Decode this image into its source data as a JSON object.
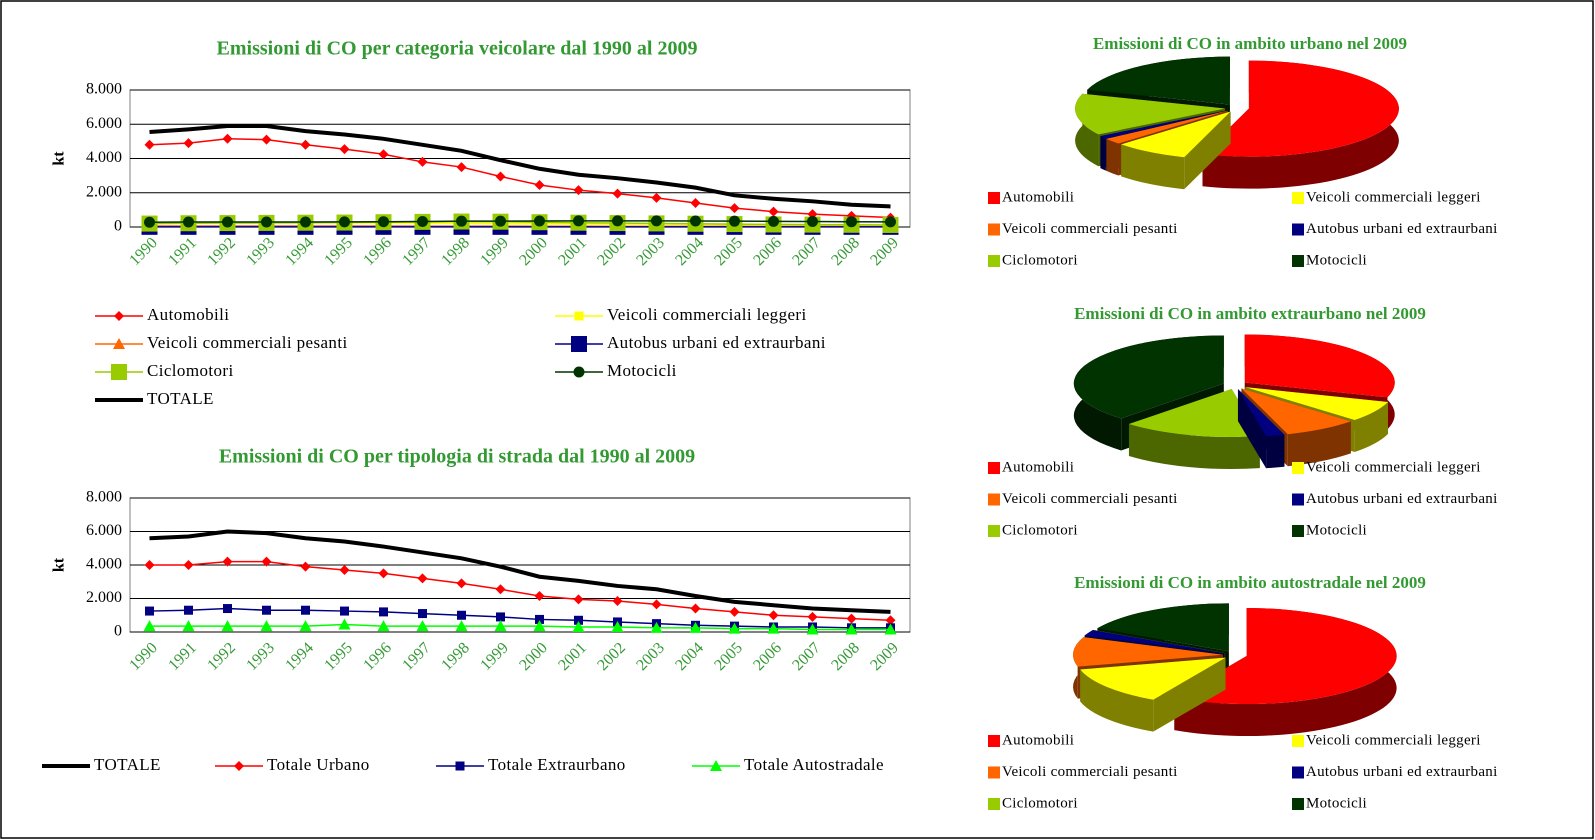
{
  "chart_data": [
    {
      "type": "line",
      "title": "Emissioni di CO per categoria veicolare dal 1990 al 2009",
      "y_label": "kt",
      "categories": [
        "1990",
        "1991",
        "1992",
        "1993",
        "1994",
        "1995",
        "1996",
        "1997",
        "1998",
        "1999",
        "2000",
        "2001",
        "2002",
        "2003",
        "2004",
        "2005",
        "2006",
        "2007",
        "2008",
        "2009"
      ],
      "ylim": [
        0,
        8000
      ],
      "yticks": [
        0,
        {
          "value": 2000,
          "label": "2.000"
        },
        {
          "value": 4000,
          "label": "4.000"
        },
        {
          "value": 6000,
          "label": "6.000"
        },
        {
          "value": 8000,
          "label": "8.000"
        }
      ],
      "grid": true,
      "series": [
        {
          "name": "Automobili",
          "color": "#ff0000",
          "marker": "diamond",
          "values": [
            4800,
            4900,
            5150,
            5100,
            4800,
            4550,
            4250,
            3800,
            3500,
            2950,
            2450,
            2150,
            1950,
            1700,
            1400,
            1100,
            900,
            750,
            650,
            550
          ]
        },
        {
          "name": "Veicoli commerciali leggeri",
          "color": "#ffff00",
          "marker": "square",
          "values": [
            250,
            250,
            260,
            260,
            260,
            250,
            240,
            230,
            220,
            200,
            190,
            180,
            170,
            160,
            150,
            140,
            130,
            120,
            110,
            100
          ]
        },
        {
          "name": "Veicoli commerciali pesanti",
          "color": "#ff6600",
          "marker": "triangle",
          "values": [
            60,
            60,
            60,
            60,
            55,
            55,
            55,
            50,
            50,
            50,
            45,
            45,
            40,
            40,
            35,
            35,
            30,
            30,
            25,
            25
          ]
        },
        {
          "name": "Autobus urbani ed extraurbani",
          "color": "#000080",
          "marker": "bigsquare",
          "values": [
            10,
            10,
            10,
            10,
            10,
            10,
            10,
            10,
            10,
            10,
            10,
            10,
            10,
            10,
            10,
            10,
            10,
            10,
            10,
            10
          ]
        },
        {
          "name": "Ciclomotori",
          "color": "#99cc00",
          "marker": "bigsquare",
          "values": [
            200,
            220,
            230,
            240,
            250,
            260,
            280,
            300,
            320,
            310,
            280,
            250,
            230,
            210,
            190,
            170,
            150,
            140,
            130,
            120
          ]
        },
        {
          "name": "Motocicli",
          "color": "#003300",
          "marker": "circle",
          "values": [
            280,
            290,
            290,
            290,
            290,
            300,
            310,
            320,
            340,
            340,
            350,
            360,
            360,
            360,
            350,
            340,
            330,
            320,
            310,
            300
          ]
        },
        {
          "name": "TOTALE",
          "color": "#000000",
          "marker": "none",
          "values": [
            5550,
            5700,
            5900,
            5900,
            5600,
            5400,
            5150,
            4800,
            4450,
            3900,
            3400,
            3050,
            2850,
            2600,
            2300,
            1850,
            1650,
            1500,
            1300,
            1200
          ]
        }
      ]
    },
    {
      "type": "line",
      "title": "Emissioni di CO per tipologia di strada dal 1990 al 2009",
      "y_label": "kt",
      "categories": [
        "1990",
        "1991",
        "1992",
        "1993",
        "1994",
        "1995",
        "1996",
        "1997",
        "1998",
        "1999",
        "2000",
        "2001",
        "2002",
        "2003",
        "2004",
        "2005",
        "2006",
        "2007",
        "2008",
        "2009"
      ],
      "ylim": [
        0,
        8000
      ],
      "yticks": [
        0,
        {
          "value": 2000,
          "label": "2.000"
        },
        {
          "value": 4000,
          "label": "4.000"
        },
        {
          "value": 6000,
          "label": "6.000"
        },
        {
          "value": 8000,
          "label": "8.000"
        }
      ],
      "grid": true,
      "series": [
        {
          "name": "TOTALE",
          "color": "#000000",
          "marker": "none",
          "values": [
            5600,
            5700,
            6000,
            5900,
            5600,
            5400,
            5100,
            4750,
            4400,
            3900,
            3300,
            3050,
            2750,
            2550,
            2150,
            1800,
            1600,
            1400,
            1300,
            1200
          ]
        },
        {
          "name": "Totale Urbano",
          "color": "#ff0000",
          "marker": "diamond",
          "values": [
            4000,
            4000,
            4200,
            4200,
            3900,
            3700,
            3500,
            3200,
            2900,
            2550,
            2150,
            1950,
            1850,
            1650,
            1400,
            1200,
            1000,
            900,
            800,
            700
          ]
        },
        {
          "name": "Totale Extraurbano",
          "color": "#000080",
          "marker": "square",
          "values": [
            1250,
            1300,
            1400,
            1300,
            1300,
            1250,
            1200,
            1100,
            1000,
            900,
            750,
            700,
            600,
            500,
            400,
            350,
            300,
            300,
            250,
            250
          ]
        },
        {
          "name": "Totale Autostradale",
          "color": "#00ff00",
          "marker": "triangle",
          "values": [
            350,
            350,
            350,
            350,
            350,
            450,
            350,
            350,
            350,
            350,
            350,
            300,
            300,
            250,
            250,
            200,
            200,
            150,
            150,
            150
          ]
        }
      ]
    },
    {
      "type": "pie",
      "title": "Emissioni di CO in ambito urbano nel 2009",
      "categories": [
        "Automobili",
        "Veicoli commerciali leggeri",
        "Veicoli commerciali pesanti",
        "Autobus urbani ed extraurbani",
        "Ciclomotori",
        "Motocicli"
      ],
      "values": [
        55,
        8,
        2,
        1,
        14,
        20
      ],
      "colors": [
        "#ff0000",
        "#ffff00",
        "#ff6600",
        "#000080",
        "#99cc00",
        "#003300"
      ]
    },
    {
      "type": "pie",
      "title": "Emissioni di CO in ambito extraurbano nel 2009",
      "categories": [
        "Automobili",
        "Veicoli commerciali leggeri",
        "Veicoli commerciali pesanti",
        "Autobus urbani ed extraurbani",
        "Ciclomotori",
        "Motocicli"
      ],
      "values": [
        30,
        7,
        8,
        2,
        15,
        38
      ],
      "colors": [
        "#ff0000",
        "#ffff00",
        "#ff6600",
        "#000080",
        "#99cc00",
        "#003300"
      ]
    },
    {
      "type": "pie",
      "title": "Emissioni di CO in ambito autostradale nel 2009",
      "categories": [
        "Automobili",
        "Veicoli commerciali leggeri",
        "Veicoli commerciali pesanti",
        "Autobus urbani ed extraurbani",
        "Ciclomotori",
        "Motocicli"
      ],
      "values": [
        58,
        13,
        10,
        2,
        0,
        17
      ],
      "colors": [
        "#ff0000",
        "#ffff00",
        "#ff6600",
        "#000080",
        "#99cc00",
        "#003300"
      ]
    }
  ]
}
